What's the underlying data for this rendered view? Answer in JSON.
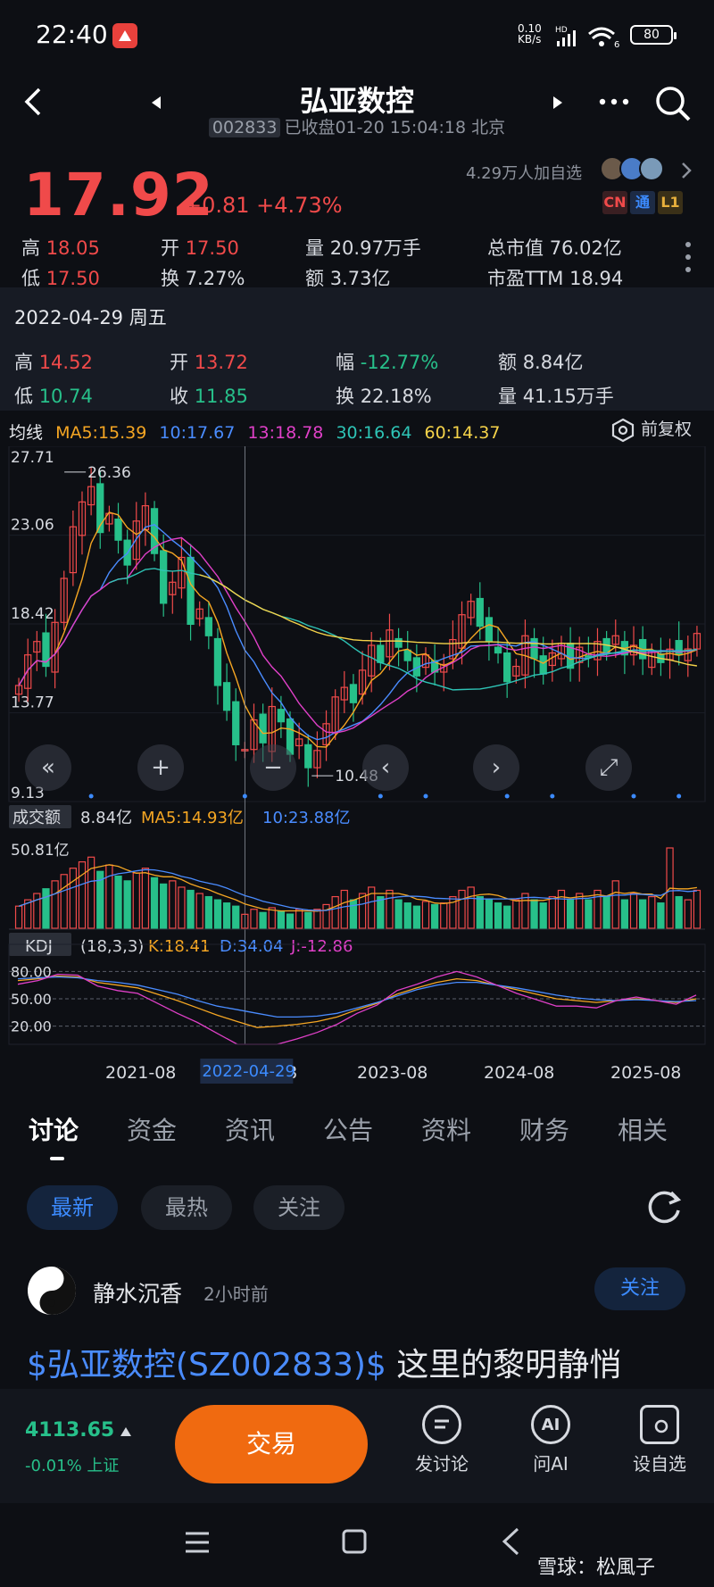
{
  "status_bar": {
    "time": "22:40",
    "net_speed": "0.10",
    "net_unit": "KB/s",
    "net_type": "HD",
    "wifi_label": "6",
    "battery": "80"
  },
  "header": {
    "title": "弘亚数控",
    "code": "002833",
    "status": "已收盘01-20 15:04:18 北京"
  },
  "quote": {
    "price": "17.92",
    "change": "+0.81 +4.73%",
    "followers": "4.29万人加自选",
    "badges": [
      "CN",
      "通",
      "L1"
    ],
    "high_label": "高",
    "high": "18.05",
    "open_label": "开",
    "open": "17.50",
    "vol_label": "量",
    "vol": "20.97万手",
    "mcap_label": "总市值",
    "mcap": "76.02亿",
    "low_label": "低",
    "low": "17.50",
    "turn_label": "换",
    "turn": "7.27%",
    "amt_label": "额",
    "amt": "3.73亿",
    "pe_label": "市盈TTM",
    "pe": "18.94"
  },
  "day_panel": {
    "date": "2022-04-29 周五",
    "high_label": "高",
    "high": "14.52",
    "open_label": "开",
    "open": "13.72",
    "amp_label": "幅",
    "amp": "-12.77%",
    "amt_label": "额",
    "amt": "8.84亿",
    "low_label": "低",
    "low": "10.74",
    "close_label": "收",
    "close": "11.85",
    "turn_label": "换",
    "turn": "22.18%",
    "vol_label": "量",
    "vol": "41.15万手"
  },
  "ma": {
    "label": "均线",
    "ma5": "MA5:15.39",
    "ma10": "10:17.67",
    "ma13": "13:18.78",
    "ma30": "30:16.64",
    "ma60": "60:14.37",
    "adjust": "前复权"
  },
  "colors": {
    "up": "#f04a4a",
    "down": "#27c08a",
    "ma5": "#f5a623",
    "ma10": "#4a8cff",
    "ma13": "#e040c8",
    "ma30": "#2ec4b6",
    "ma60": "#f5d34a"
  },
  "chart_data": {
    "type": "candlestick",
    "y_ticks": [
      "27.71",
      "23.06",
      "18.42",
      "13.77",
      "9.13"
    ],
    "ylim": [
      9.13,
      27.71
    ],
    "max_label": "26.36",
    "min_label": "10.48",
    "x_ticks": [
      "2021-08",
      "-08",
      "2023-08",
      "2024-08",
      "2025-08"
    ],
    "crosshair_label": "2022-04-29",
    "close": [
      15.2,
      16.8,
      17.5,
      16.2,
      18.5,
      20.8,
      23.5,
      24.8,
      25.6,
      23.2,
      24.2,
      22.8,
      21.5,
      23.8,
      24.6,
      22.1,
      19.5,
      20.6,
      21.9,
      18.4,
      19.2,
      17.8,
      15.2,
      13.9,
      12.1,
      11.85,
      13.4,
      12.2,
      14.1,
      13.3,
      11.6,
      12.4,
      10.9,
      11.8,
      13.2,
      14.6,
      15.1,
      14.3,
      16.0,
      17.3,
      16.4,
      18.1,
      17.2,
      16.5,
      15.7,
      16.8,
      15.9,
      16.3,
      17.6,
      18.9,
      19.6,
      18.3,
      17.5,
      16.9,
      15.4,
      16.2,
      17.8,
      16.6,
      15.8,
      16.9,
      17.4,
      16.1,
      17.2,
      16.7,
      17.5,
      16.9,
      17.8,
      16.8,
      17.3,
      16.6,
      17.0,
      16.4,
      17.1,
      16.8,
      17.11,
      17.92
    ],
    "volume_ylim": [
      0,
      50.81
    ],
    "volume_max_label": "50.81亿",
    "volume_values": [
      14,
      18,
      22,
      25,
      30,
      34,
      38,
      42,
      45,
      36,
      40,
      33,
      30,
      35,
      38,
      32,
      28,
      30,
      26,
      24,
      22,
      20,
      18,
      16,
      14,
      8.84,
      12,
      10,
      13,
      11,
      9,
      12,
      10,
      12,
      15,
      20,
      24,
      18,
      22,
      26,
      20,
      24,
      18,
      16,
      14,
      17,
      15,
      16,
      20,
      24,
      26,
      20,
      18,
      16,
      14,
      18,
      22,
      18,
      16,
      20,
      24,
      18,
      22,
      18,
      24,
      20,
      30,
      18,
      22,
      18,
      20,
      16,
      50.81,
      20,
      18,
      24
    ],
    "volume_labels": {
      "name": "成交额",
      "value": "8.84亿",
      "ma5": "MA5:14.93亿",
      "ma10": "10:23.88亿"
    },
    "kdj_labels": {
      "name": "KDJ",
      "params": "(18,3,3)",
      "k": "K:18.41",
      "d": "D:34.04",
      "j": "J:-12.86"
    },
    "kdj_ticks": [
      "80.00",
      "50.00",
      "20.00"
    ],
    "kdj_ylim": [
      0,
      100
    ],
    "kdj_k": [
      70,
      72,
      75,
      74,
      68,
      65,
      62,
      55,
      48,
      40,
      32,
      25,
      18.41,
      20,
      22,
      25,
      30,
      38,
      45,
      55,
      62,
      68,
      72,
      70,
      65,
      60,
      55,
      50,
      48,
      46,
      48,
      50,
      48,
      46,
      50
    ],
    "kdj_d": [
      72,
      73,
      74,
      73,
      70,
      68,
      65,
      60,
      55,
      48,
      42,
      38,
      34.04,
      30,
      30,
      31,
      34,
      40,
      46,
      53,
      60,
      65,
      68,
      68,
      65,
      62,
      58,
      54,
      51,
      49,
      48,
      49,
      48,
      47,
      48
    ],
    "kdj_j": [
      66,
      70,
      77,
      76,
      64,
      59,
      56,
      45,
      34,
      24,
      12,
      0,
      -12.86,
      0,
      6,
      13,
      22,
      34,
      43,
      59,
      66,
      74,
      80,
      74,
      65,
      56,
      49,
      42,
      42,
      40,
      48,
      52,
      48,
      44,
      54
    ]
  },
  "chart_controls": [
    "«",
    "+",
    "−",
    "‹",
    "›",
    "⤢"
  ],
  "tabs": [
    "讨论",
    "资金",
    "资讯",
    "公告",
    "资料",
    "财务",
    "相关"
  ],
  "filters": [
    "最新",
    "最热",
    "关注"
  ],
  "post": {
    "author": "静水沉香",
    "time": "2小时前",
    "follow": "关注",
    "text_link": "$弘亚数控(SZ002833)$",
    "text": " 这里的黎明静悄"
  },
  "bottom_bar": {
    "index_value": "4113.65",
    "index_change": "-0.01% 上证",
    "trade": "交易",
    "discuss": "发讨论",
    "ask_ai": "问AI",
    "add_watch": "设自选",
    "ai_icon": "AI"
  },
  "watermark": "雪球：松風子"
}
